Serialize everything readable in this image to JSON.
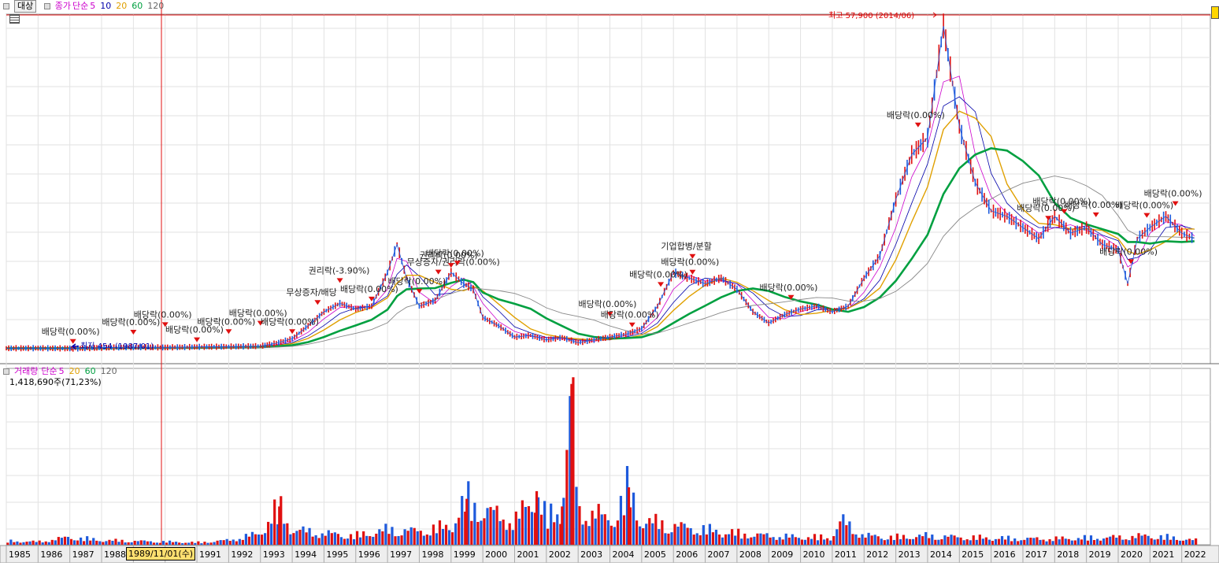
{
  "price_panel": {
    "legend": {
      "target_label": "대상",
      "close_label": "종가",
      "ma_type": "단순",
      "periods": [
        "5",
        "10",
        "20",
        "60",
        "120"
      ],
      "period_colors": [
        "#cc00cc",
        "#0000aa",
        "#e0a000",
        "#00a040",
        "#888888"
      ]
    },
    "high_annotation": "최고 57,900 (2014/06)",
    "low_annotation": "최저 454 (1987/01)"
  },
  "volume_panel": {
    "legend": {
      "label": "거래량",
      "ma_type": "단순",
      "periods": [
        "5",
        "20",
        "60",
        "120"
      ],
      "period_colors": [
        "#cc00cc",
        "#e0a000",
        "#00a040",
        "#888888"
      ]
    },
    "readout": "1,418,690주(71,23%)"
  },
  "cursor": {
    "date_label": "1989/11/01(수)"
  },
  "chart_data": {
    "type": "line",
    "title": "",
    "x_ticks": [
      "1985",
      "1986",
      "1987",
      "1988",
      "1989",
      "1990",
      "1991",
      "1992",
      "1993",
      "1994",
      "1995",
      "1996",
      "1997",
      "1998",
      "1999",
      "2000",
      "2001",
      "2002",
      "2003",
      "2004",
      "2005",
      "2006",
      "2007",
      "2008",
      "2009",
      "2010",
      "2011",
      "2012",
      "2013",
      "2014",
      "2015",
      "2016",
      "2017",
      "2018",
      "2019",
      "2020",
      "2021",
      "2022"
    ],
    "xlim": [
      1985.0,
      2022.9
    ],
    "price_ylim": [
      0,
      60000
    ],
    "price_series": {
      "name": "종가",
      "x": [
        1985.0,
        1986.0,
        1987.0,
        1987.1,
        1988.0,
        1989.0,
        1990.0,
        1991.0,
        1992.0,
        1993.0,
        1993.5,
        1994.0,
        1994.5,
        1995.0,
        1995.5,
        1996.0,
        1996.5,
        1997.0,
        1997.3,
        1997.6,
        1998.0,
        1998.5,
        1999.0,
        1999.4,
        1999.7,
        2000.0,
        2000.5,
        2001.0,
        2001.5,
        2002.0,
        2002.5,
        2003.0,
        2003.5,
        2004.0,
        2004.5,
        2005.0,
        2005.5,
        2006.0,
        2006.5,
        2007.0,
        2007.5,
        2008.0,
        2008.5,
        2009.0,
        2009.5,
        2010.0,
        2010.5,
        2011.0,
        2011.5,
        2012.0,
        2012.5,
        2013.0,
        2013.5,
        2014.0,
        2014.5,
        2015.0,
        2015.5,
        2016.0,
        2016.5,
        2017.0,
        2017.5,
        2018.0,
        2018.5,
        2019.0,
        2019.5,
        2020.0,
        2020.3,
        2020.6,
        2021.0,
        2021.5,
        2022.0,
        2022.4
      ],
      "y": [
        500,
        520,
        480,
        454,
        600,
        700,
        650,
        750,
        800,
        900,
        1400,
        2200,
        4500,
        7000,
        8500,
        7500,
        8000,
        14000,
        19000,
        13000,
        8000,
        9000,
        14000,
        12000,
        11000,
        6000,
        4500,
        2500,
        2800,
        2000,
        2400,
        1500,
        2000,
        2500,
        3000,
        4000,
        8000,
        14000,
        13000,
        12000,
        13000,
        11000,
        7000,
        5000,
        6500,
        7500,
        8000,
        7000,
        8000,
        13000,
        17000,
        27000,
        35000,
        38000,
        57900,
        40000,
        30000,
        25000,
        24000,
        22000,
        20000,
        24000,
        21000,
        22000,
        19000,
        18000,
        12000,
        20000,
        22000,
        24000,
        21000,
        20000
      ]
    },
    "moving_averages": [
      {
        "name": "5",
        "color": "#cc00cc"
      },
      {
        "name": "10",
        "color": "#0000aa"
      },
      {
        "name": "20",
        "color": "#e0a000"
      },
      {
        "name": "60",
        "color": "#00a040"
      },
      {
        "name": "120",
        "color": "#888888"
      }
    ],
    "annotations": [
      {
        "x": 1987.1,
        "text": "배당락(0.00%)"
      },
      {
        "x": 1989.0,
        "text": "배당락(0.00%)"
      },
      {
        "x": 1990.0,
        "text": "배당락(0.00%)"
      },
      {
        "x": 1991.0,
        "text": "배당락(0.00%)"
      },
      {
        "x": 1992.0,
        "text": "배당락(0.00%)"
      },
      {
        "x": 1993.0,
        "text": "배당락(0.00%)"
      },
      {
        "x": 1994.0,
        "text": "배당락(0.00%)"
      },
      {
        "x": 1994.8,
        "text": "무상증자/배당"
      },
      {
        "x": 1995.5,
        "text": "권리락(-3.90%)"
      },
      {
        "x": 1996.5,
        "text": "배당락(0.00%)"
      },
      {
        "x": 1998.0,
        "text": "배당락(0.00%)"
      },
      {
        "x": 1998.6,
        "text": "무상증자/권리락(0.00%)"
      },
      {
        "x": 1999.0,
        "text": "권리락(0.00%)"
      },
      {
        "x": 1999.2,
        "text": "배당락(0.00%)"
      },
      {
        "x": 2004.0,
        "text": "배당락(0.00%)"
      },
      {
        "x": 2004.7,
        "text": "배당락(0.00%)"
      },
      {
        "x": 2005.6,
        "text": "배당락(0.00%)"
      },
      {
        "x": 2006.6,
        "text": "기업합병/분할"
      },
      {
        "x": 2006.6,
        "text": "배당락(0.00%)"
      },
      {
        "x": 2009.7,
        "text": "배당락(0.00%)"
      },
      {
        "x": 2013.7,
        "text": "배당락(0.00%)"
      },
      {
        "x": 2017.8,
        "text": "배당락(0.00%)"
      },
      {
        "x": 2018.3,
        "text": "배당락(0.00%)"
      },
      {
        "x": 2019.3,
        "text": "배당락(0.00%)"
      },
      {
        "x": 2020.4,
        "text": "배당락(0.00%)"
      },
      {
        "x": 2020.9,
        "text": "배당락(0.00%)"
      },
      {
        "x": 2021.8,
        "text": "배당락(0.00%)"
      }
    ],
    "volume_series": {
      "name": "거래량",
      "x": [
        1985,
        1986,
        1987,
        1988,
        1989,
        1990,
        1991,
        1992,
        1993,
        1993.3,
        1993.6,
        1994,
        1995,
        1996,
        1997,
        1998,
        1999,
        1999.5,
        2000,
        2000.5,
        2001,
        2001.7,
        2002,
        2002.5,
        2002.8,
        2003,
        2003.5,
        2004,
        2004.6,
        2004.9,
        2005.3,
        2006,
        2007,
        2008,
        2009,
        2010,
        2011,
        2011.3,
        2012,
        2013,
        2014,
        2015,
        2016,
        2017,
        2018,
        2019,
        2020,
        2021,
        2022,
        2022.4
      ],
      "y": [
        5,
        4,
        10,
        6,
        5,
        4,
        3,
        6,
        15,
        35,
        50,
        20,
        15,
        12,
        20,
        18,
        25,
        60,
        45,
        40,
        30,
        70,
        35,
        50,
        210,
        40,
        45,
        30,
        75,
        35,
        30,
        25,
        20,
        15,
        12,
        10,
        10,
        32,
        12,
        10,
        12,
        10,
        9,
        8,
        8,
        9,
        10,
        12,
        8,
        6
      ]
    },
    "volume_ylim": [
      0,
      220
    ]
  }
}
